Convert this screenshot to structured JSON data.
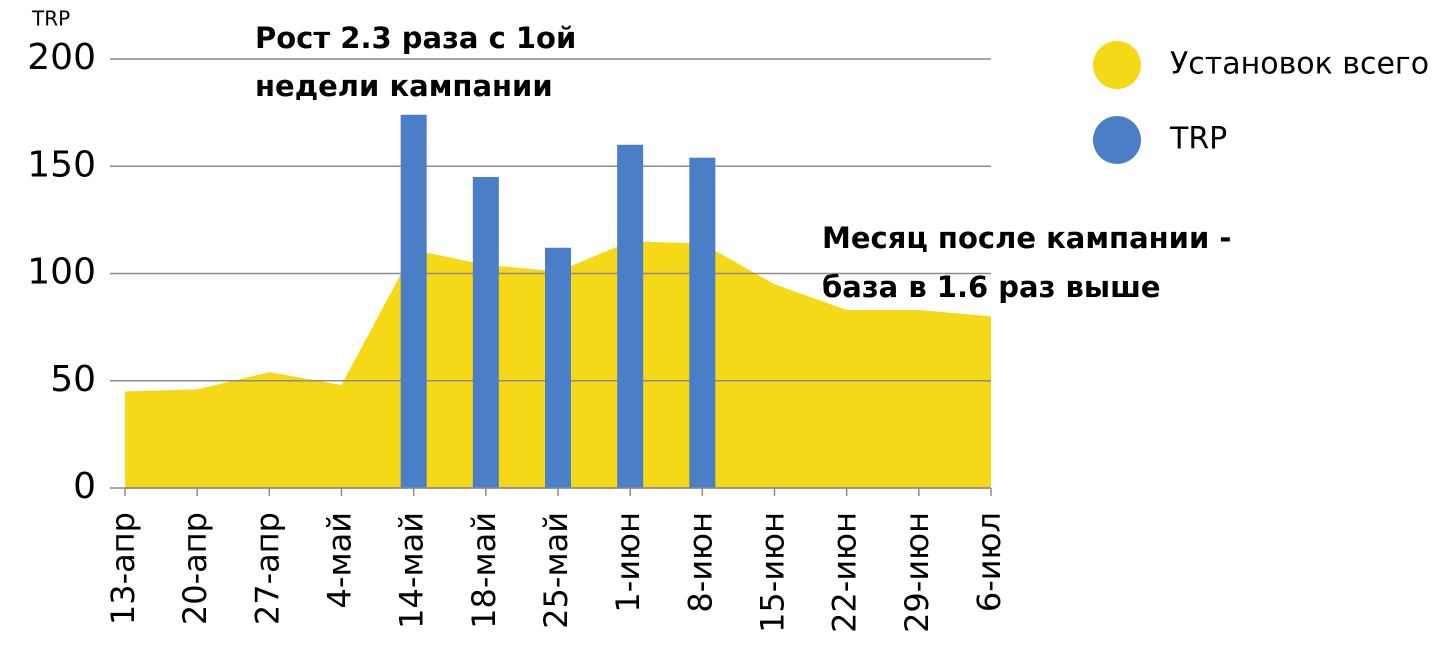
{
  "chart_data": {
    "type": "combo",
    "y_axis_label": "TRP",
    "categories": [
      "13-апр",
      "20-апр",
      "27-апр",
      "4-май",
      "14-май",
      "18-май",
      "25-май",
      "1-июн",
      "8-июн",
      "15-июн",
      "22-июн",
      "29-июн",
      "6-июл"
    ],
    "series": [
      {
        "name": "Установок всего",
        "type": "area",
        "color": "#f5d916",
        "values": [
          45,
          46,
          54,
          48,
          111,
          104,
          101,
          115,
          114,
          95,
          83,
          83,
          80
        ]
      },
      {
        "name": "TRP",
        "type": "bar",
        "color": "#4a7ec6",
        "values": [
          null,
          null,
          null,
          null,
          174,
          145,
          112,
          160,
          154,
          null,
          null,
          null,
          null
        ]
      }
    ],
    "ylim": [
      0,
      200
    ],
    "yticks": [
      0,
      50,
      100,
      150,
      200
    ],
    "grid": true,
    "annotations": [
      "Рост 2.3 раза с 1ой",
      "недели кампании",
      "Месяц после кампании -",
      "база в 1.6 раз выше"
    ],
    "legend": "right"
  }
}
